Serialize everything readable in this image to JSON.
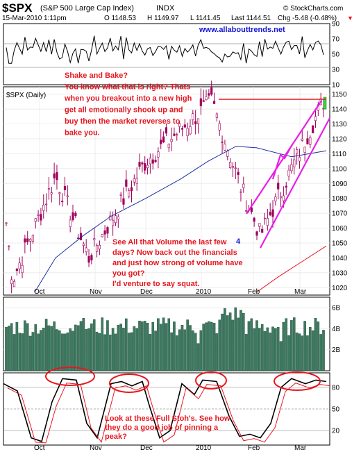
{
  "header": {
    "symbol": "$SPX",
    "name": "(S&P 500 Large Cap Index)",
    "exchange": "INDX",
    "datetime": "15-Mar-2010 1:11pm",
    "open": "O 1148.53",
    "high": "H 1149.97",
    "low": "L 1141.45",
    "last": "Last 1144.51",
    "change": "Chg -5.48 (-0.48%)",
    "change_marker": "▼",
    "brand": "© StockCharts.com",
    "website": "www.allabouttrends.net"
  },
  "colors": {
    "candle": "#a0005a",
    "ma_short": "#1c2fa0",
    "ma_long": "#e8161f",
    "channel": "#e81ee8",
    "resistance": "#e8161f",
    "volume": "#3d7a60",
    "annotation": "#e8161f",
    "blue_text": "#1414d7"
  },
  "chart_data": [
    {
      "type": "line",
      "panel": "rsi",
      "yticks": [
        "90",
        "70",
        "50",
        "30",
        "10"
      ],
      "ylim": [
        10,
        90
      ],
      "levels": [
        70,
        30
      ]
    },
    {
      "type": "candlestick",
      "panel": "price",
      "label": "$SPX (Daily)",
      "ylim": [
        1015,
        1155
      ],
      "yticks": [
        "1150",
        "1140",
        "1130",
        "1120",
        "1110",
        "1100",
        "1090",
        "1080",
        "1070",
        "1060",
        "1050",
        "1040",
        "1030",
        "1020"
      ],
      "xticks": [
        "Oct",
        "Nov",
        "Dec",
        "2010",
        "Feb",
        "Mar"
      ],
      "resistance_level": 1150,
      "wave_label": "4",
      "key_points": [
        {
          "date": "Oct",
          "close": 1025
        },
        {
          "date": "mid-Oct",
          "close": 1095
        },
        {
          "date": "Nov",
          "close": 1040
        },
        {
          "date": "Dec",
          "close": 1105
        },
        {
          "date": "2010",
          "close": 1145
        },
        {
          "date": "late-Jan",
          "close": 1090
        },
        {
          "date": "Feb",
          "close": 1055
        },
        {
          "date": "Mar",
          "close": 1145
        }
      ]
    },
    {
      "type": "bar",
      "panel": "volume",
      "yticks": [
        "6B",
        "4B",
        "2B"
      ],
      "ylim": [
        0,
        7
      ]
    },
    {
      "type": "line",
      "panel": "stochastics",
      "yticks": [
        "80",
        "50",
        "20"
      ],
      "ylim": [
        0,
        100
      ],
      "levels": [
        80,
        50,
        20
      ]
    }
  ],
  "annotations": {
    "shake_bake": [
      "Shake and Bake?",
      "You know what that is right? Thats",
      "when you breakout into a new high",
      "get all emotionally shook up and",
      "buy then the market reverses to",
      "bake you."
    ],
    "volume_note": [
      "See All that Volume the last few",
      "days? Now back out the financials",
      "and just how strong of volume have",
      "you got?",
      "I'd venture to say squat."
    ],
    "stoch_note": [
      "Look at these Full Stoh's. See how",
      "they do a good job of pinning a",
      "peak?"
    ]
  }
}
